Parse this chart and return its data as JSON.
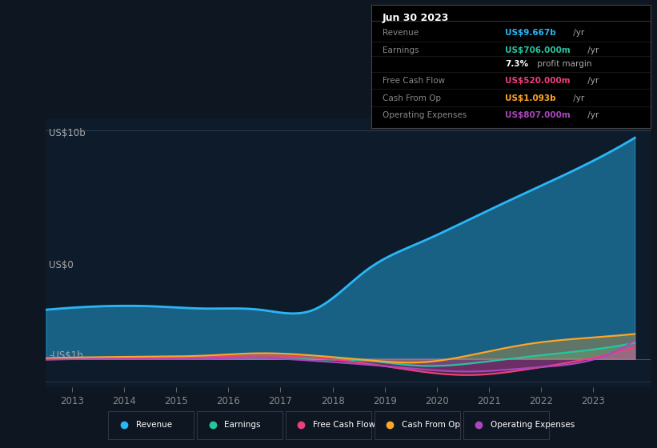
{
  "bg_color": "#0e1621",
  "plot_bg_color": "#0d1b2a",
  "ylabel_top": "US$10b",
  "ylabel_zero": "US$0",
  "ylabel_neg": "-US$1b",
  "x_ticks": [
    2013,
    2014,
    2015,
    2016,
    2017,
    2018,
    2019,
    2020,
    2021,
    2022,
    2023
  ],
  "ylim": [
    -1.25,
    10.5
  ],
  "revenue": [
    2.15,
    2.3,
    2.3,
    2.2,
    2.15,
    2.15,
    3.9,
    5.1,
    6.2,
    7.3,
    8.4,
    9.667
  ],
  "earnings": [
    0.02,
    0.05,
    0.07,
    0.05,
    0.03,
    -0.02,
    -0.08,
    -0.3,
    -0.18,
    0.1,
    0.35,
    0.706
  ],
  "free_cash_flow": [
    -0.02,
    0.02,
    0.05,
    0.08,
    0.15,
    0.05,
    -0.2,
    -0.55,
    -0.7,
    -0.45,
    -0.05,
    0.52
  ],
  "cash_from_op": [
    0.03,
    0.08,
    0.1,
    0.15,
    0.25,
    0.15,
    -0.05,
    -0.15,
    0.2,
    0.65,
    0.9,
    1.093
  ],
  "operating_expenses": [
    -0.03,
    0.0,
    0.0,
    0.01,
    0.04,
    -0.08,
    -0.25,
    -0.45,
    -0.55,
    -0.4,
    -0.15,
    0.807
  ],
  "revenue_color": "#29b6f6",
  "earnings_color": "#26c6a2",
  "fcf_color": "#ec407a",
  "cfop_color": "#ffa726",
  "opex_color": "#ab47bc",
  "infobox": {
    "date": "Jun 30 2023",
    "rows": [
      {
        "label": "Revenue",
        "value": "US$9.667b",
        "suffix": " /yr",
        "value_color": "#29b6f6"
      },
      {
        "label": "Earnings",
        "value": "US$706.000m",
        "suffix": " /yr",
        "value_color": "#26c6a2"
      },
      {
        "label": "",
        "value": "7.3%",
        "suffix": " profit margin",
        "value_color": "#ffffff"
      },
      {
        "label": "Free Cash Flow",
        "value": "US$520.000m",
        "suffix": " /yr",
        "value_color": "#ec407a"
      },
      {
        "label": "Cash From Op",
        "value": "US$1.093b",
        "suffix": " /yr",
        "value_color": "#ffa726"
      },
      {
        "label": "Operating Expenses",
        "value": "US$807.000m",
        "suffix": " /yr",
        "value_color": "#ab47bc"
      }
    ]
  },
  "legend_items": [
    {
      "label": "Revenue",
      "color": "#29b6f6"
    },
    {
      "label": "Earnings",
      "color": "#26c6a2"
    },
    {
      "label": "Free Cash Flow",
      "color": "#ec407a"
    },
    {
      "label": "Cash From Op",
      "color": "#ffa726"
    },
    {
      "label": "Operating Expenses",
      "color": "#ab47bc"
    }
  ]
}
